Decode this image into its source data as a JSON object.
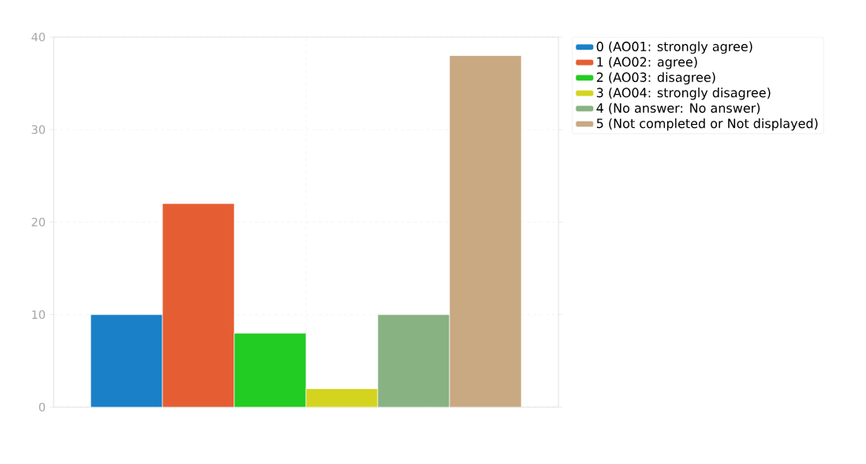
{
  "chart_data": {
    "type": "bar",
    "categories": [
      null
    ],
    "series": [
      {
        "name": "0 (AO01: strongly agree)",
        "color": "#1a80c8",
        "values": [
          10
        ]
      },
      {
        "name": "1 (AO02: agree)",
        "color": "#e55e33",
        "values": [
          22
        ]
      },
      {
        "name": "2 (AO03: disagree)",
        "color": "#22cc22",
        "values": [
          8
        ]
      },
      {
        "name": "3 (AO04: strongly disagree)",
        "color": "#d4d420",
        "values": [
          2
        ]
      },
      {
        "name": "4 (No answer: No answer)",
        "color": "#88b282",
        "values": [
          10
        ]
      },
      {
        "name": "5 (Not completed or Not displayed)",
        "color": "#c8a982",
        "values": [
          38
        ]
      }
    ],
    "ylim": [
      0,
      40
    ],
    "yticks": [
      0,
      10,
      20,
      30,
      40
    ],
    "grid": true,
    "legend": "top right"
  }
}
